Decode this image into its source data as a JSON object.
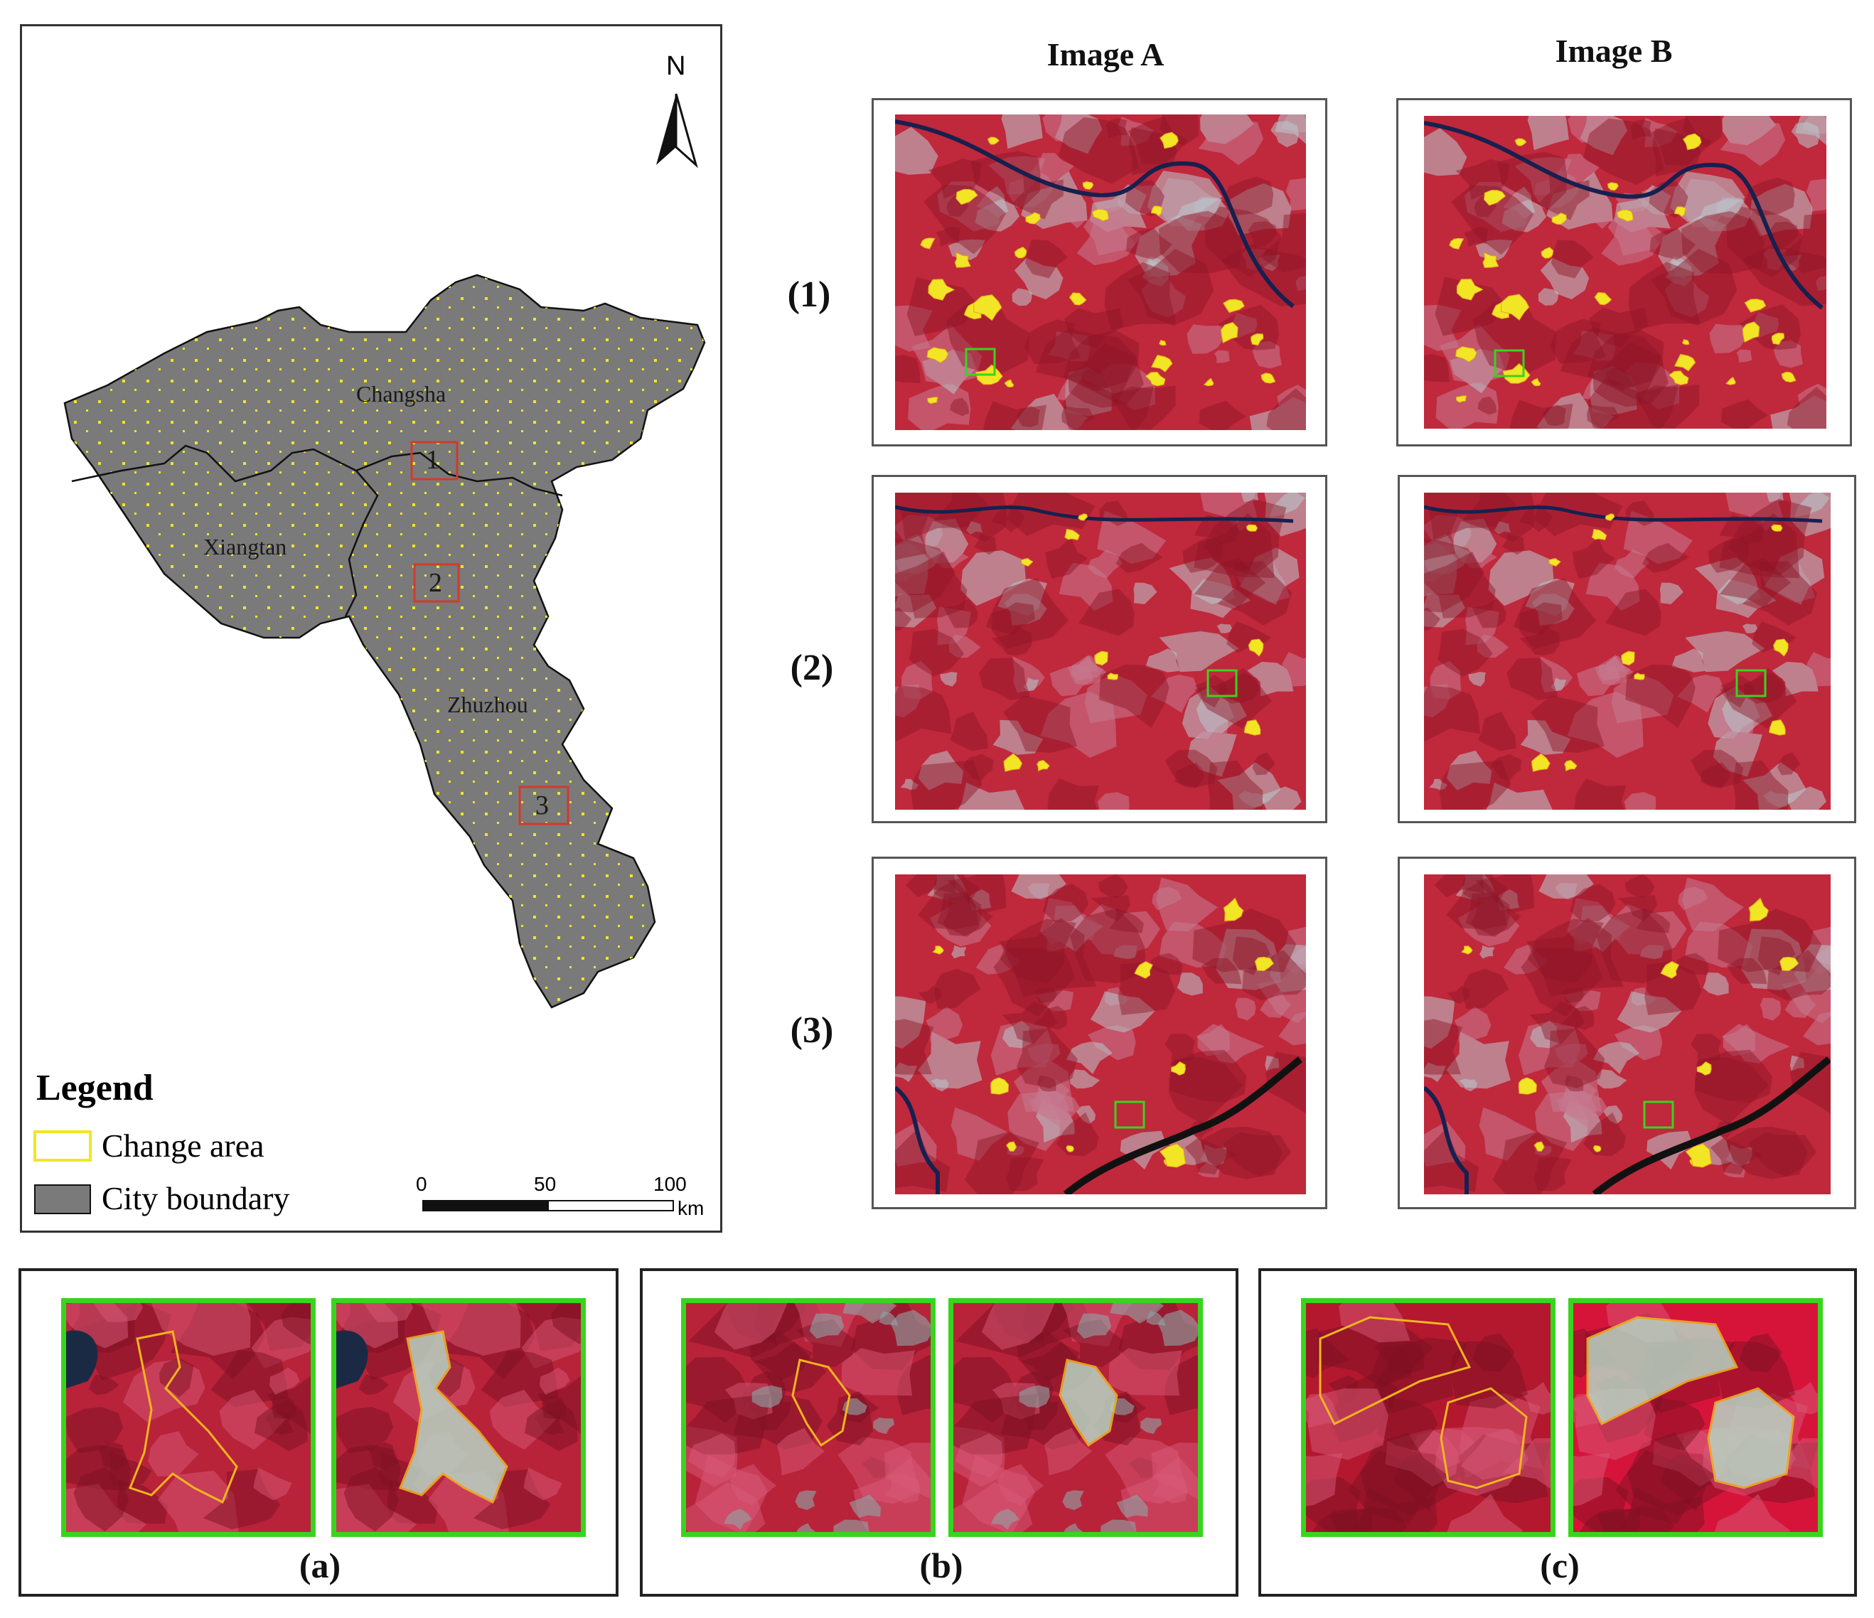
{
  "columns": {
    "image_a": "Image A",
    "image_b": "Image B"
  },
  "rows": [
    "(1)",
    "(2)",
    "(3)"
  ],
  "map": {
    "north_label": "N",
    "cities": [
      "Changsha",
      "Xiangtan",
      "Zhuzhou"
    ],
    "sites": [
      "1",
      "2",
      "3"
    ],
    "legend": {
      "title": "Legend",
      "change_area": "Change area",
      "city_boundary": "City boundary"
    },
    "scale": {
      "ticks": [
        "0",
        "50",
        "100"
      ],
      "unit": "km"
    }
  },
  "insets": [
    "(a)",
    "(b)",
    "(c)"
  ],
  "colors": {
    "city_fill": "#7a7a7a",
    "change_area": "#f2e526",
    "site_box": "#d23a2a",
    "zoom_frame": "#39d41f",
    "vegetation": "#c8283f",
    "urban": "#b6c8cc",
    "water": "#1a1f4a"
  }
}
